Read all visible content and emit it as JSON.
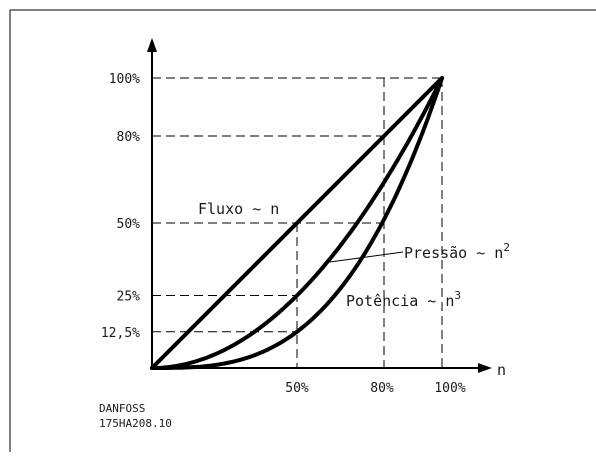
{
  "chart_data": {
    "type": "line",
    "x_axis": {
      "name": "n",
      "ticks": [
        {
          "value": 0.5,
          "label": "50%"
        },
        {
          "value": 0.8,
          "label": "80%"
        },
        {
          "value": 1.0,
          "label": "100%"
        }
      ],
      "range": [
        0,
        1
      ]
    },
    "y_axis": {
      "ticks": [
        {
          "value": 0.125,
          "label": "12,5%"
        },
        {
          "value": 0.25,
          "label": "25%"
        },
        {
          "value": 0.5,
          "label": "50%"
        },
        {
          "value": 0.8,
          "label": "80%"
        },
        {
          "value": 1.0,
          "label": "100%"
        }
      ],
      "range": [
        0,
        1
      ]
    },
    "series": [
      {
        "name": "Fluxo ~ n",
        "exponent": 1,
        "x": [
          0,
          0.25,
          0.5,
          0.75,
          1.0
        ],
        "y": [
          0,
          0.25,
          0.5,
          0.75,
          1.0
        ]
      },
      {
        "name": "Pressão ~ n²",
        "exponent": 2,
        "x": [
          0,
          0.25,
          0.5,
          0.75,
          1.0
        ],
        "y": [
          0,
          0.0625,
          0.25,
          0.5625,
          1.0
        ]
      },
      {
        "name": "Potência ~ n³",
        "exponent": 3,
        "x": [
          0,
          0.25,
          0.5,
          0.75,
          1.0
        ],
        "y": [
          0,
          0.015625,
          0.125,
          0.421875,
          1.0
        ]
      }
    ],
    "labels": {
      "flow": "Fluxo ~ n",
      "pressure_base": "Press",
      "pressure_tilde_vowel": "ão",
      "pressure_rest": " ~ n",
      "pressure_sup": "2",
      "power_base": "Potência ~ n",
      "power_sup": "3"
    },
    "guides": {
      "dashed_verticals_at_x": [
        0.5,
        0.8,
        1.0
      ],
      "dashed_horizontals_at_y": [
        0.125,
        0.25,
        0.5,
        0.8,
        1.0
      ]
    },
    "grid": false,
    "legend": "none"
  },
  "credit": {
    "line1": "DANFOSS",
    "line2": "175HA208.10"
  }
}
